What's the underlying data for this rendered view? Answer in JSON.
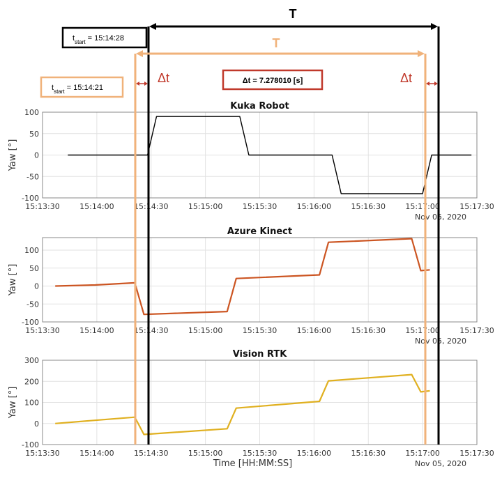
{
  "annotations": {
    "T_label_top": "T",
    "T_label_mid": "T",
    "box_kuka_start": {
      "prefix": "t",
      "sub": "start",
      "text": " = 15:14:28"
    },
    "box_cam_start": {
      "prefix": "t",
      "sub": "start",
      "text": " = 15:14:21"
    },
    "delta_box": "Δt = 7.278010 [s]",
    "delta_left": "Δt",
    "delta_right": "Δt",
    "colors": {
      "black": "#000000",
      "peach": "#f0b27a",
      "red": "#c0392b"
    }
  },
  "chart_data": [
    {
      "type": "line",
      "title": "Kuka Robot",
      "ylabel": "Yaw [°]",
      "xlabel": "",
      "date_label": "Nov 05, 2020",
      "color": "#000000",
      "xlim": [
        "15:13:30",
        "15:17:30"
      ],
      "ylim": [
        -100,
        100
      ],
      "yticks": [
        100,
        50,
        0,
        -50,
        -100
      ],
      "xticks": [
        "15:13:30",
        "15:14:00",
        "15:14:30",
        "15:15:00",
        "15:15:30",
        "15:16:00",
        "15:16:30",
        "15:17:00",
        "15:17:30"
      ],
      "grid": true,
      "x": [
        "15:13:44",
        "15:14:28",
        "15:14:33",
        "15:15:19",
        "15:15:24",
        "15:16:10",
        "15:16:15",
        "15:17:00",
        "15:17:05",
        "15:17:27"
      ],
      "y": [
        0,
        0,
        90,
        90,
        0,
        0,
        -90,
        -90,
        0,
        0
      ]
    },
    {
      "type": "line",
      "title": "Azure Kinect",
      "ylabel": "Yaw [°]",
      "xlabel": "",
      "date_label": "Nov 05, 2020",
      "color": "#cc5522",
      "xlim": [
        "15:13:30",
        "15:17:30"
      ],
      "ylim": [
        -100,
        135
      ],
      "yticks": [
        100,
        50,
        0,
        -50,
        -100
      ],
      "xticks": [
        "15:13:30",
        "15:14:00",
        "15:14:30",
        "15:15:00",
        "15:15:30",
        "15:16:00",
        "15:16:30",
        "15:17:00",
        "15:17:30"
      ],
      "grid": true,
      "x": [
        "15:13:37",
        "15:13:59",
        "15:14:21",
        "15:14:26",
        "15:15:12",
        "15:15:17",
        "15:16:03",
        "15:16:08",
        "15:16:54",
        "15:16:59",
        "15:17:04"
      ],
      "y": [
        0,
        3,
        9,
        -79,
        -71,
        21,
        31,
        122,
        132,
        43,
        45
      ]
    },
    {
      "type": "line",
      "title": "Vision RTK",
      "ylabel": "Yaw [°]",
      "xlabel": "Time [HH:MM:SS]",
      "date_label": "Nov 05, 2020",
      "color": "#e0b020",
      "xlim": [
        "15:13:30",
        "15:17:30"
      ],
      "ylim": [
        -100,
        300
      ],
      "yticks": [
        300,
        200,
        100,
        0,
        -100
      ],
      "xticks": [
        "15:13:30",
        "15:14:00",
        "15:14:30",
        "15:15:00",
        "15:15:30",
        "15:16:00",
        "15:16:30",
        "15:17:00",
        "15:17:30"
      ],
      "grid": true,
      "x": [
        "15:13:37",
        "15:13:59",
        "15:14:21",
        "15:14:26",
        "15:15:12",
        "15:15:17",
        "15:16:03",
        "15:16:08",
        "15:16:54",
        "15:16:59",
        "15:17:04"
      ],
      "y": [
        0,
        15,
        30,
        -52,
        -25,
        73,
        105,
        202,
        232,
        150,
        155
      ]
    }
  ]
}
